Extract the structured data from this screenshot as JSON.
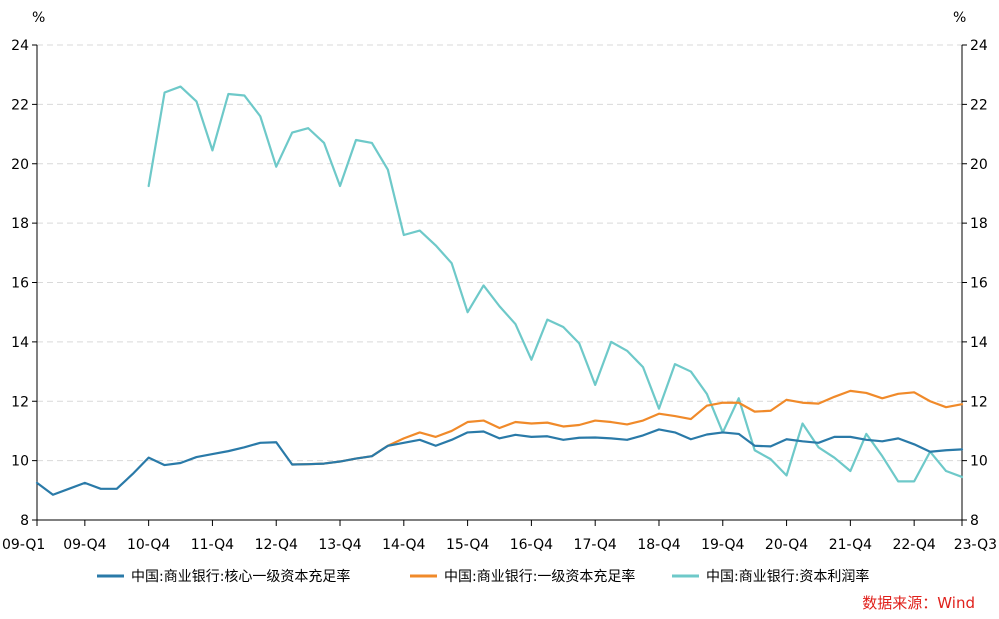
{
  "chart_data": {
    "type": "line",
    "y_unit_left": "%",
    "y_unit_right": "%",
    "ylim": [
      8,
      24
    ],
    "yticks": [
      "8",
      "10",
      "12",
      "14",
      "16",
      "18",
      "20",
      "22",
      "24"
    ],
    "xtick_labels": [
      "09-Q1",
      "09-Q4",
      "10-Q4",
      "11-Q4",
      "12-Q4",
      "13-Q4",
      "14-Q4",
      "15-Q4",
      "16-Q4",
      "17-Q4",
      "18-Q4",
      "19-Q4",
      "20-Q4",
      "21-Q4",
      "22-Q4",
      "23-Q3"
    ],
    "xtick_positions": [
      0,
      3,
      7,
      11,
      15,
      19,
      23,
      27,
      31,
      35,
      39,
      43,
      47,
      51,
      55,
      58
    ],
    "x": [
      "09-Q1",
      "09-Q2",
      "09-Q3",
      "09-Q4",
      "10-Q1",
      "10-Q2",
      "10-Q3",
      "10-Q4",
      "11-Q1",
      "11-Q2",
      "11-Q3",
      "11-Q4",
      "12-Q1",
      "12-Q2",
      "12-Q3",
      "12-Q4",
      "13-Q1",
      "13-Q2",
      "13-Q3",
      "13-Q4",
      "14-Q1",
      "14-Q2",
      "14-Q3",
      "14-Q4",
      "15-Q1",
      "15-Q2",
      "15-Q3",
      "15-Q4",
      "16-Q1",
      "16-Q2",
      "16-Q3",
      "16-Q4",
      "17-Q1",
      "17-Q2",
      "17-Q3",
      "17-Q4",
      "18-Q1",
      "18-Q2",
      "18-Q3",
      "18-Q4",
      "19-Q1",
      "19-Q2",
      "19-Q3",
      "19-Q4",
      "20-Q1",
      "20-Q2",
      "20-Q3",
      "20-Q4",
      "21-Q1",
      "21-Q2",
      "21-Q3",
      "21-Q4",
      "22-Q1",
      "22-Q2",
      "22-Q3",
      "22-Q4",
      "23-Q1",
      "23-Q2",
      "23-Q3"
    ],
    "series": [
      {
        "name": "中国:商业银行:核心一级资本充足率",
        "color": "#2a7aa8",
        "values": [
          9.25,
          8.85,
          9.05,
          9.25,
          9.05,
          9.05,
          9.55,
          10.1,
          9.85,
          9.92,
          10.12,
          10.22,
          10.32,
          10.45,
          10.6,
          10.62,
          9.87,
          9.88,
          9.9,
          9.97,
          10.07,
          10.15,
          10.5,
          10.6,
          10.7,
          10.5,
          10.7,
          10.95,
          10.98,
          10.75,
          10.87,
          10.8,
          10.82,
          10.7,
          10.77,
          10.78,
          10.75,
          10.7,
          10.85,
          11.05,
          10.95,
          10.72,
          10.88,
          10.95,
          10.9,
          10.5,
          10.48,
          10.72,
          10.65,
          10.6,
          10.8,
          10.8,
          10.7,
          10.65,
          10.75,
          10.55,
          10.3,
          10.35,
          10.38
        ]
      },
      {
        "name": "中国:商业银行:一级资本充足率",
        "color": "#f08a2a",
        "values": [
          null,
          null,
          null,
          null,
          null,
          null,
          null,
          null,
          null,
          null,
          null,
          null,
          null,
          null,
          null,
          null,
          9.87,
          9.88,
          9.9,
          9.97,
          10.07,
          10.15,
          10.5,
          10.75,
          10.95,
          10.8,
          11.0,
          11.3,
          11.35,
          11.1,
          11.3,
          11.25,
          11.28,
          11.15,
          11.2,
          11.35,
          11.3,
          11.22,
          11.35,
          11.58,
          11.5,
          11.4,
          11.85,
          11.95,
          11.95,
          11.65,
          11.68,
          12.05,
          11.95,
          11.92,
          12.15,
          12.35,
          12.28,
          12.1,
          12.25,
          12.3,
          12.0,
          11.8,
          11.9
        ]
      },
      {
        "name": "中国:商业银行:资本利润率",
        "color": "#6ec9c9",
        "values": [
          null,
          null,
          null,
          null,
          null,
          null,
          null,
          19.25,
          22.4,
          22.6,
          22.1,
          20.45,
          22.35,
          22.3,
          21.6,
          19.9,
          21.05,
          21.2,
          20.7,
          19.25,
          20.8,
          20.7,
          19.8,
          17.6,
          17.75,
          17.25,
          16.65,
          15.0,
          15.9,
          15.2,
          14.6,
          13.4,
          14.75,
          14.5,
          13.95,
          12.55,
          14.0,
          13.7,
          13.15,
          11.75,
          13.25,
          13.0,
          12.25,
          10.95,
          12.1,
          10.35,
          10.05,
          9.5,
          11.25,
          10.45,
          10.1,
          9.65,
          10.9,
          10.15,
          9.3,
          9.3,
          10.3,
          9.65,
          9.45
        ]
      }
    ],
    "legend": [
      "中国:商业银行:核心一级资本充足率",
      "中国:商业银行:一级资本充足率",
      "中国:商业银行:资本利润率"
    ],
    "legend_position": "bottom",
    "source": "数据来源：Wind",
    "grid": true
  }
}
